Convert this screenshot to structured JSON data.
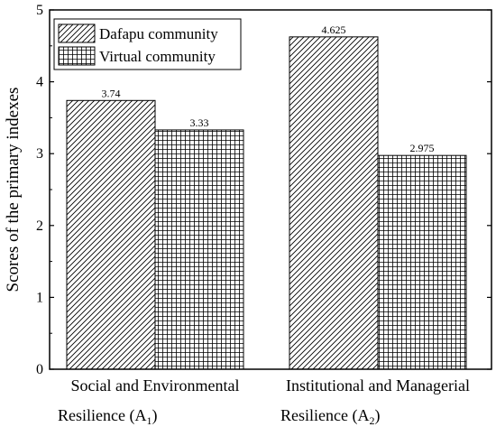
{
  "chart_data": {
    "type": "bar",
    "categories": [
      {
        "main": "Social and Environmental",
        "line2": "Resilience (A",
        "sub": "1",
        "close": ")"
      },
      {
        "main": "Institutional and Managerial",
        "line2": "Resilience (A",
        "sub": "2",
        "close": ")"
      }
    ],
    "series": [
      {
        "name": "Dafapu community",
        "pattern": "diagonal-hatch",
        "values": [
          3.74,
          4.625
        ],
        "labels": [
          "3.74",
          "4.625"
        ]
      },
      {
        "name": "Virtual community",
        "pattern": "grid",
        "values": [
          3.33,
          2.975
        ],
        "labels": [
          "3.33",
          "2.975"
        ]
      }
    ],
    "title": "",
    "xlabel": "",
    "ylabel": "Scores of the primary indexes",
    "ylim": [
      0,
      5
    ],
    "yticks": [
      "0",
      "1",
      "2",
      "3",
      "4",
      "5"
    ],
    "grid": false,
    "legend_position": "top-left",
    "colors": {
      "bar_fill": "#ffffff",
      "pattern_stroke": "#000000",
      "axis": "#000000"
    }
  }
}
